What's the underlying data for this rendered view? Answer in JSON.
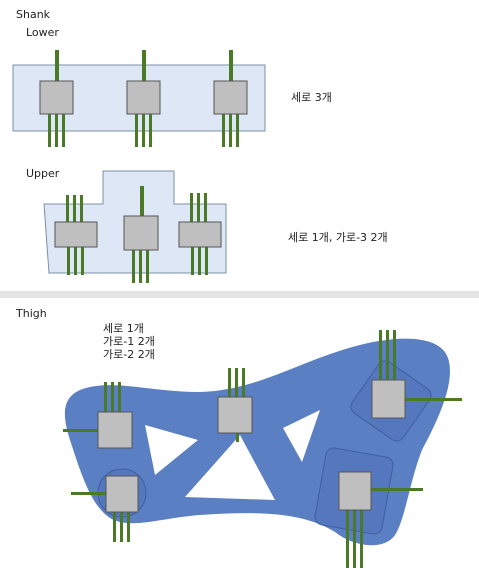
{
  "sections": {
    "shank": {
      "title": "Shank",
      "lower": {
        "title": "Lower",
        "note": "세로 3개"
      },
      "upper": {
        "title": "Upper",
        "note": "세로 1개, 가로-3 2개"
      }
    },
    "thigh": {
      "title": "Thigh",
      "notes": [
        "세로 1개",
        "가로-1 2개",
        "가로-2 2개"
      ]
    }
  },
  "colors": {
    "panel_fill": "#dde7f5",
    "panel_stroke": "#7c8fa8",
    "thigh_fill": "#5b7fc3",
    "thigh_dark": "#4a6db2",
    "sensor_fill": "#bfbfbf",
    "sensor_stroke": "#555555",
    "wire": "#4a7a26",
    "separator": "#e4e4e4"
  }
}
